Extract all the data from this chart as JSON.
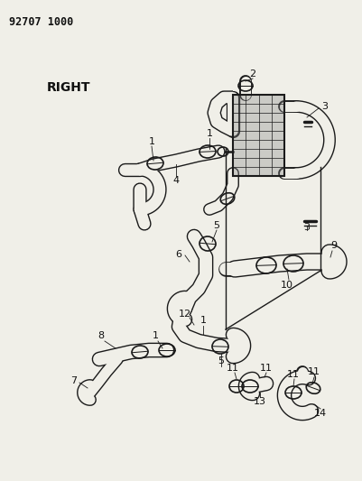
{
  "title_code": "92707 1000",
  "label_right": "RIGHT",
  "bg_color": "#f0efe8",
  "line_color": "#1a1a1a",
  "text_color": "#111111",
  "lw_pipe": 1.8,
  "lw_thin": 0.8,
  "lw_grid": 0.5
}
